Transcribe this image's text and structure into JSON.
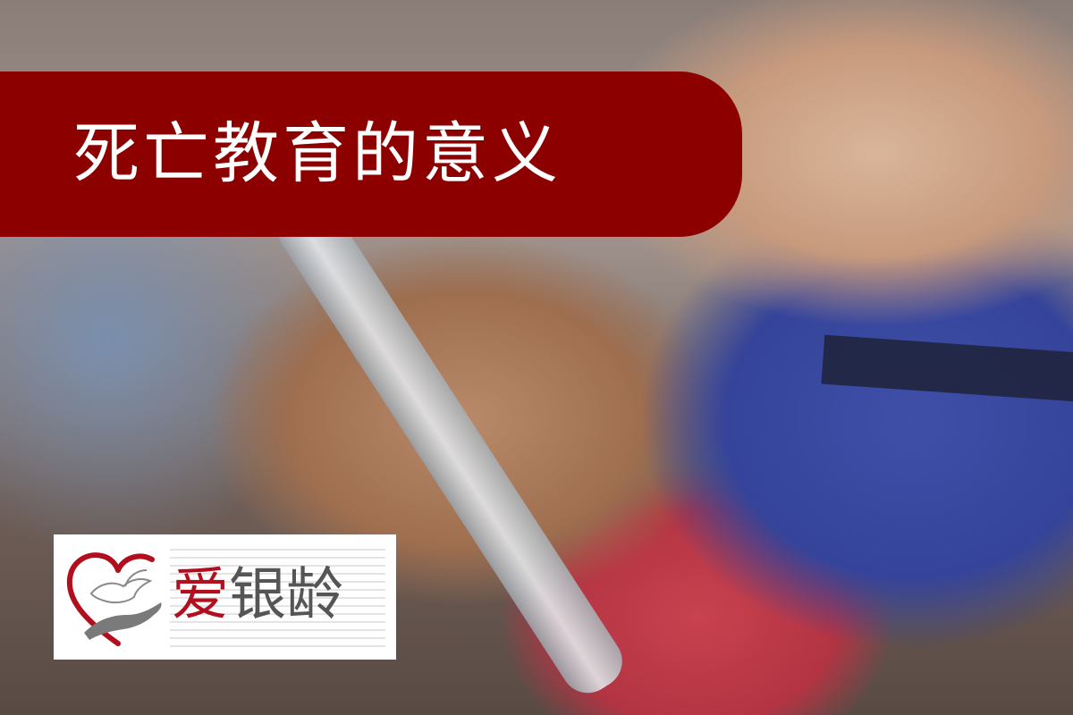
{
  "title": "死亡教育的意义",
  "logo": {
    "text": "爱银龄",
    "part_red": "爱",
    "part_gray": "银龄",
    "icon": "heart-dove-hand-icon",
    "colors": {
      "red": "#b10f1e",
      "gray": "#555555"
    }
  },
  "colors": {
    "banner": "#8c0000",
    "title_text": "#ffffff"
  }
}
